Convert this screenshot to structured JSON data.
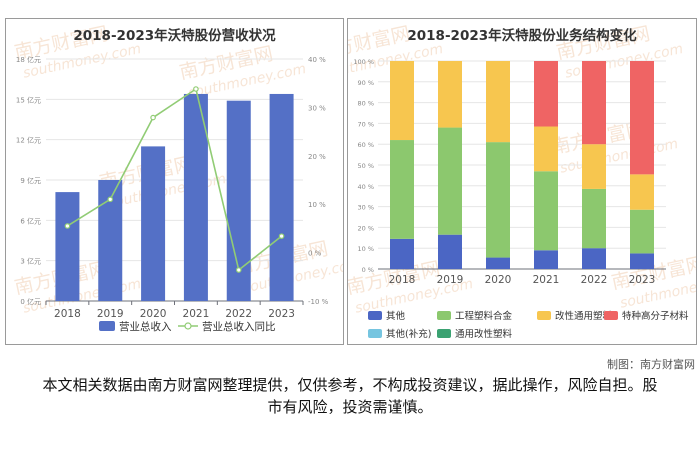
{
  "colors": {
    "bar_revenue": "#5470c6",
    "line_yoy": "#91cc75",
    "others": "#4b66c4",
    "engineering_plastics": "#8cc86e",
    "modified_general_plastics": "#f7c64f",
    "specialty_polymers": "#ef6464",
    "others_supplement": "#76c5e0",
    "general_modified_plastics": "#3ba272"
  },
  "watermark": {
    "cn": "南方财富网",
    "en": "southmoney.com"
  },
  "credit": "制图：南方财富网",
  "disclaimer": "本文相关数据由南方财富网整理提供，仅供参考，不构成投资建议，据此操作，风险自担。股市有风险，投资需谨慎。",
  "chart_data": [
    {
      "type": "bar",
      "title": "2018-2023年沃特股份营收状况",
      "categories": [
        "2018",
        "2019",
        "2020",
        "2021",
        "2022",
        "2023"
      ],
      "y_left": {
        "ylim": [
          0,
          18
        ],
        "ticks": [
          0,
          3,
          6,
          9,
          12,
          15,
          18
        ],
        "tick_labels": [
          "0 亿元",
          "3 亿元",
          "6 亿元",
          "9 亿元",
          "12 亿元",
          "15 亿元",
          "18 亿元"
        ]
      },
      "y_right": {
        "ylim": [
          -10,
          40
        ],
        "ticks": [
          -10,
          0,
          10,
          20,
          30,
          40
        ],
        "tick_labels": [
          "-10 %",
          "0 %",
          "10 %",
          "20 %",
          "30 %",
          "40 %"
        ]
      },
      "series": [
        {
          "name": "营业总收入",
          "kind": "bar",
          "axis": "left",
          "values": [
            8.1,
            9.0,
            11.5,
            15.4,
            14.9,
            15.4
          ]
        },
        {
          "name": "营业总收入同比",
          "kind": "line",
          "axis": "right",
          "values": [
            5.5,
            11.0,
            27.9,
            33.8,
            -3.6,
            3.4
          ]
        }
      ]
    },
    {
      "type": "bar",
      "stacked": true,
      "title": "2018-2023年沃特股份业务结构变化",
      "categories": [
        "2018",
        "2019",
        "2020",
        "2021",
        "2022",
        "2023"
      ],
      "ylim": [
        0,
        100
      ],
      "ticks": [
        0,
        10,
        20,
        30,
        40,
        50,
        60,
        70,
        80,
        90,
        100
      ],
      "tick_labels": [
        "0 %",
        "10 %",
        "20 %",
        "30 %",
        "40 %",
        "50 %",
        "60 %",
        "70 %",
        "80 %",
        "90 %",
        "100 %"
      ],
      "series": [
        {
          "name": "其他",
          "color_key": "others",
          "values": [
            14.5,
            16.5,
            5.5,
            9.0,
            10.0,
            7.5
          ]
        },
        {
          "name": "工程塑料合金",
          "color_key": "engineering_plastics",
          "values": [
            47.5,
            51.5,
            55.5,
            38.0,
            28.5,
            21.0
          ]
        },
        {
          "name": "改性通用塑料",
          "color_key": "modified_general_plastics",
          "values": [
            38.0,
            32.0,
            39.0,
            21.5,
            21.5,
            17.0
          ]
        },
        {
          "name": "特种高分子材料",
          "color_key": "specialty_polymers",
          "values": [
            0,
            0,
            0,
            31.5,
            40.0,
            54.5
          ]
        },
        {
          "name": "其他(补充)",
          "color_key": "others_supplement",
          "values": [
            0,
            0,
            0,
            0,
            0,
            0
          ]
        },
        {
          "name": "通用改性塑料",
          "color_key": "general_modified_plastics",
          "values": [
            0,
            0,
            0,
            0,
            0,
            0
          ]
        }
      ]
    }
  ]
}
